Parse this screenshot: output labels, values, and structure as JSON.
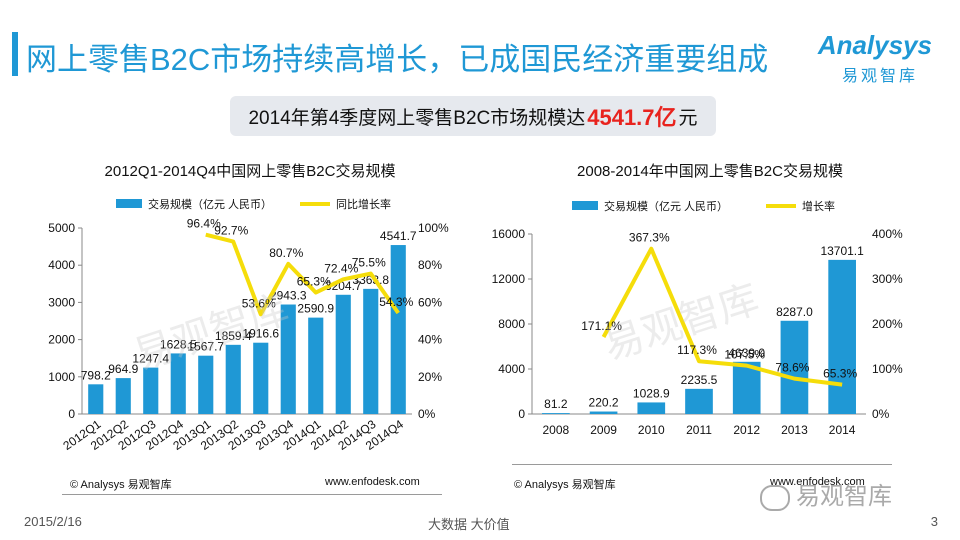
{
  "header": {
    "title": "网上零售B2C市场持续高增长，已成国民经济重要组成",
    "logo_main": "Analysys",
    "logo_sub": "易观智库"
  },
  "banner": {
    "prefix": "2014年第4季度网上零售B2C市场规模达",
    "highlight": "4541.7亿",
    "suffix": "元"
  },
  "watermark": "易观智库",
  "footer": {
    "date": "2015/2/16",
    "center": "大数据   大价值",
    "page": "3",
    "wechat": "易观智库"
  },
  "colors": {
    "bar": "#1f98d5",
    "line": "#f5dd0a",
    "accent": "#1f98d5",
    "highlight": "#e8231e"
  },
  "chart_data": [
    {
      "type": "bar",
      "title": "2012Q1-2014Q4中国网上零售B2C交易规模",
      "copyright": "© Analysys 易观智库",
      "site": "www.enfodesk.com",
      "legend": {
        "bar": "交易规模（亿元 人民币）",
        "line": "同比增长率",
        "placement": "top"
      },
      "categories": [
        "2012Q1",
        "2012Q2",
        "2012Q3",
        "2012Q4",
        "2013Q1",
        "2013Q2",
        "2013Q3",
        "2013Q4",
        "2014Q1",
        "2014Q2",
        "2014Q3",
        "2014Q4"
      ],
      "bar_values": [
        798.2,
        964.9,
        1247.4,
        1628.5,
        1567.7,
        1859.4,
        1916.6,
        2943.3,
        2590.9,
        3204.7,
        3363.8,
        4541.7
      ],
      "bar_labels": [
        "798.2",
        "964.9",
        "1247.4",
        "1628.5",
        "1567.7",
        "1859.4",
        "1916.6",
        "2943.3",
        "2590.9",
        "3204.7",
        "3363.8",
        "4541.7"
      ],
      "line_values": [
        null,
        null,
        null,
        null,
        96.4,
        92.7,
        53.6,
        80.7,
        65.3,
        72.4,
        75.5,
        54.3
      ],
      "line_labels": [
        "",
        "",
        "",
        "",
        "96.4%",
        "92.7%",
        "53.6%",
        "80.7%",
        "65.3%",
        "72.4%",
        "75.5%",
        "54.3%"
      ],
      "ylim": [
        0,
        5000
      ],
      "yticks": [
        "0",
        "1000",
        "2000",
        "3000",
        "4000",
        "5000"
      ],
      "y2lim": [
        0,
        100
      ],
      "y2ticks": [
        "0%",
        "20%",
        "40%",
        "60%",
        "80%",
        "100%"
      ],
      "grid": false
    },
    {
      "type": "bar",
      "title": "2008-2014年中国网上零售B2C交易规模",
      "copyright": "© Analysys 易观智库",
      "site": "www.enfodesk.com",
      "legend": {
        "bar": "交易规模（亿元 人民币）",
        "line": "增长率",
        "placement": "top"
      },
      "categories": [
        "2008",
        "2009",
        "2010",
        "2011",
        "2012",
        "2013",
        "2014"
      ],
      "bar_values": [
        81.2,
        220.2,
        1028.9,
        2235.5,
        4639.0,
        8287.0,
        13701.1
      ],
      "bar_labels": [
        "81.2",
        "220.2",
        "1028.9",
        "2235.5",
        "4639.0",
        "8287.0",
        "13701.1"
      ],
      "line_values": [
        null,
        171.1,
        367.3,
        117.3,
        107.5,
        78.6,
        65.3
      ],
      "line_labels": [
        "",
        "171.1%",
        "367.3%",
        "117.3%",
        "107.5%",
        "78.6%",
        "65.3%"
      ],
      "ylim": [
        0,
        16000
      ],
      "yticks": [
        "0",
        "4000",
        "8000",
        "12000",
        "16000"
      ],
      "y2lim": [
        0,
        400
      ],
      "y2ticks": [
        "0%",
        "100%",
        "200%",
        "300%",
        "400%"
      ],
      "grid": false
    }
  ]
}
